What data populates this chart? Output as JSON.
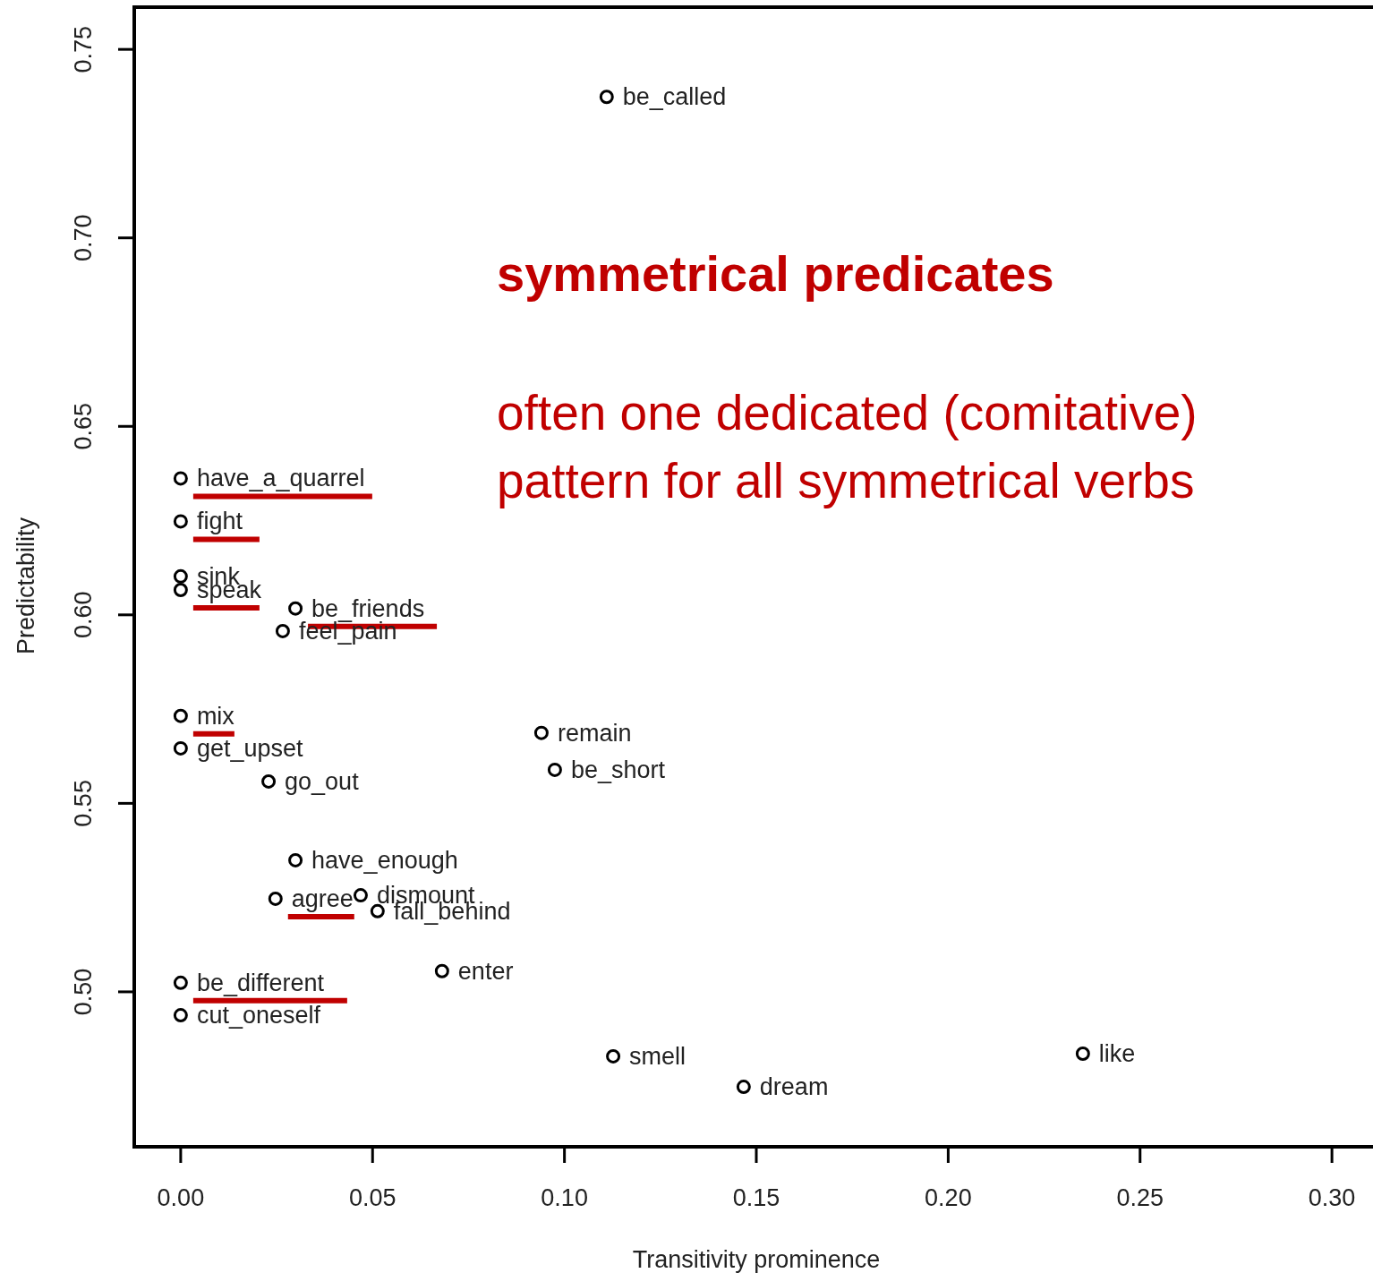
{
  "chart_data": {
    "type": "scatter",
    "xlabel": "Transitivity prominence",
    "ylabel": "Predictability",
    "marker": "circle",
    "grid": false,
    "xlim": [
      -0.0121,
      0.3107
    ],
    "ylim": [
      0.4589,
      0.7612
    ],
    "xticks": [
      {
        "value": 0,
        "label": "0.00"
      },
      {
        "value": 0.05,
        "label": "0.05"
      },
      {
        "value": 0.1,
        "label": "0.10"
      },
      {
        "value": 0.15,
        "label": "0.15"
      },
      {
        "value": 0.2,
        "label": "0.20"
      },
      {
        "value": 0.25,
        "label": "0.25"
      },
      {
        "value": 0.3,
        "label": "0.30"
      }
    ],
    "yticks": [
      {
        "value": 0.5,
        "label": "0.50"
      },
      {
        "value": 0.55,
        "label": "0.55"
      },
      {
        "value": 0.6,
        "label": "0.60"
      },
      {
        "value": 0.65,
        "label": "0.65"
      },
      {
        "value": 0.7,
        "label": "0.70"
      },
      {
        "value": 0.75,
        "label": "0.75"
      }
    ],
    "series": [
      {
        "color": "#000000",
        "x": [
          0,
          0,
          0,
          0.0299,
          0,
          0.0247,
          0
        ],
        "values": [
          0.6362,
          0.6248,
          0.6066,
          0.6017,
          0.5732,
          0.5247,
          0.5024
        ],
        "value_labels": [
          "have_a_quarrel",
          "fight",
          "speak",
          "be_friends",
          "mix",
          "agree",
          "be_different"
        ]
      },
      {
        "color": "#000000",
        "x": [
          0.111,
          0,
          0.0266,
          0,
          0.0229,
          0.094,
          0.0975,
          0.0299,
          0.0469,
          0.0513,
          0.0681,
          0,
          0.1127,
          0.2351,
          0.1467
        ],
        "values": [
          0.7374,
          0.6102,
          0.5957,
          0.5646,
          0.5558,
          0.5687,
          0.5589,
          0.5349,
          0.5256,
          0.5214,
          0.5055,
          0.4938,
          0.4829,
          0.4836,
          0.4748
        ],
        "value_labels": [
          "be_called",
          "sink",
          "feel_pain",
          "get_upset",
          "go_out",
          "remain",
          "be_short",
          "have_enough",
          "dismount",
          "fall_behind",
          "enter",
          "cut_oneself",
          "smell",
          "like",
          "dream"
        ]
      }
    ],
    "annotations": [
      "symmetrical predicates",
      "often one dedicated (comitative)\npattern for all symmetrical verbs"
    ]
  }
}
